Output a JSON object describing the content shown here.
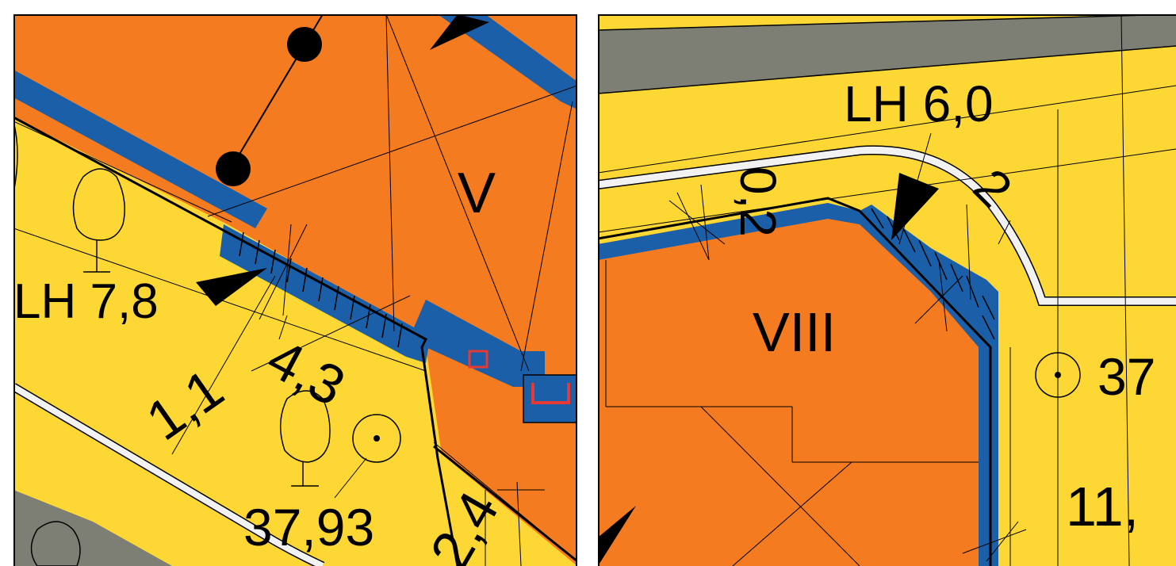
{
  "colors": {
    "building": "#F47B20",
    "yard": "#FDD835",
    "road": "#7E7F74",
    "setback": "#1A5FA8",
    "red_marker": "#E53935",
    "path": "#F2F2F2",
    "line": "#000000"
  },
  "left_panel": {
    "zone_label": "V",
    "height_label": "LH 7,8",
    "dimension_label_1": "1,1",
    "dimension_label_2": "4,3",
    "dimension_label_3": "2,4",
    "elevation_label": "37,93",
    "icons": [
      "tree-icon",
      "tree-icon",
      "elevation-point-icon",
      "utility-pole-icon",
      "arrow-marker-icon"
    ]
  },
  "right_panel": {
    "zone_label": "VIII",
    "height_label": "LH 6,0",
    "dimension_label_1": "0,2",
    "dimension_label_2": "2",
    "dimension_label_3": "11,",
    "elevation_label": "37",
    "icons": [
      "elevation-point-icon",
      "arrow-marker-icon"
    ]
  }
}
